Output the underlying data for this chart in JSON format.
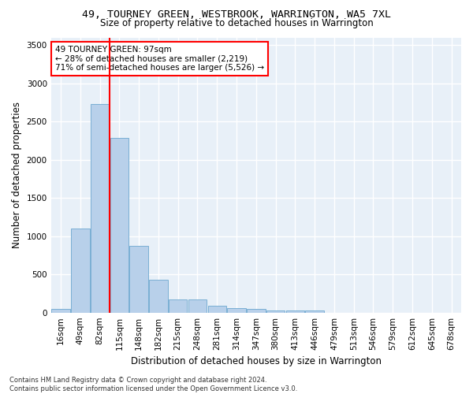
{
  "title": "49, TOURNEY GREEN, WESTBROOK, WARRINGTON, WA5 7XL",
  "subtitle": "Size of property relative to detached houses in Warrington",
  "xlabel": "Distribution of detached houses by size in Warrington",
  "ylabel": "Number of detached properties",
  "bar_color": "#b8d0ea",
  "bar_edge_color": "#7aafd4",
  "background_color": "#e8f0f8",
  "grid_color": "#ffffff",
  "property_bin_index": 2.5,
  "property_line_color": "red",
  "annotation_text": "49 TOURNEY GREEN: 97sqm\n← 28% of detached houses are smaller (2,219)\n71% of semi-detached houses are larger (5,526) →",
  "footer_text": "Contains HM Land Registry data © Crown copyright and database right 2024.\nContains public sector information licensed under the Open Government Licence v3.0.",
  "bin_labels": [
    "16sqm",
    "49sqm",
    "82sqm",
    "115sqm",
    "148sqm",
    "182sqm",
    "215sqm",
    "248sqm",
    "281sqm",
    "314sqm",
    "347sqm",
    "380sqm",
    "413sqm",
    "446sqm",
    "479sqm",
    "513sqm",
    "546sqm",
    "579sqm",
    "612sqm",
    "645sqm",
    "678sqm"
  ],
  "bar_values": [
    50,
    1100,
    2730,
    2290,
    870,
    430,
    170,
    170,
    90,
    60,
    50,
    30,
    30,
    25,
    0,
    0,
    0,
    0,
    0,
    0,
    0
  ],
  "ylim": [
    0,
    3600
  ],
  "yticks": [
    0,
    500,
    1000,
    1500,
    2000,
    2500,
    3000,
    3500
  ],
  "title_fontsize": 9.5,
  "subtitle_fontsize": 8.5,
  "ylabel_fontsize": 8.5,
  "xlabel_fontsize": 8.5,
  "tick_fontsize": 7.5,
  "annot_fontsize": 7.5,
  "footer_fontsize": 6
}
